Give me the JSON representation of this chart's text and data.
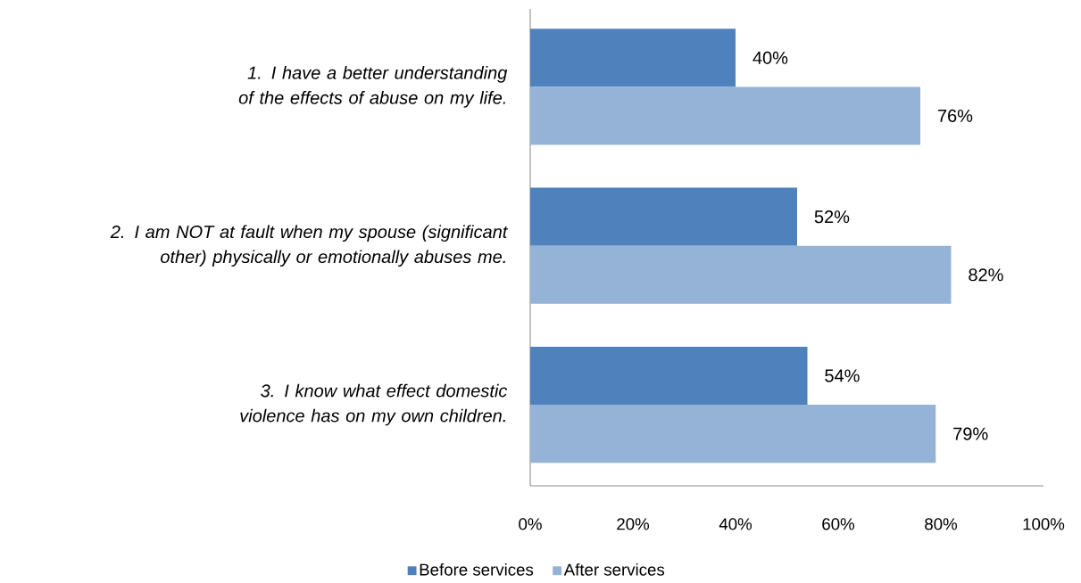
{
  "chart_data": {
    "type": "bar",
    "orientation": "horizontal",
    "categories": [
      "1. I have a better understanding of the effects of abuse on my life.",
      "2. I am NOT at fault when my spouse (significant other) physically or emotionally abuses me.",
      "3. I know what effect domestic violence has on my own children."
    ],
    "series": [
      {
        "name": "Before services",
        "color": "#4f81bd",
        "values": [
          40,
          52,
          54
        ],
        "value_labels": [
          "40%",
          "52%",
          "54%"
        ]
      },
      {
        "name": "After services",
        "color": "#95b3d7",
        "values": [
          76,
          82,
          79
        ],
        "value_labels": [
          "76%",
          "82%",
          "79%"
        ]
      }
    ],
    "xlim": [
      0,
      100
    ],
    "xticks": [
      {
        "value": 0,
        "label": "0%"
      },
      {
        "value": 20,
        "label": "20%"
      },
      {
        "value": 40,
        "label": "40%"
      },
      {
        "value": 60,
        "label": "60%"
      },
      {
        "value": 80,
        "label": "80%"
      },
      {
        "value": 100,
        "label": "100%"
      }
    ],
    "grid": false,
    "legend": "bottom"
  }
}
